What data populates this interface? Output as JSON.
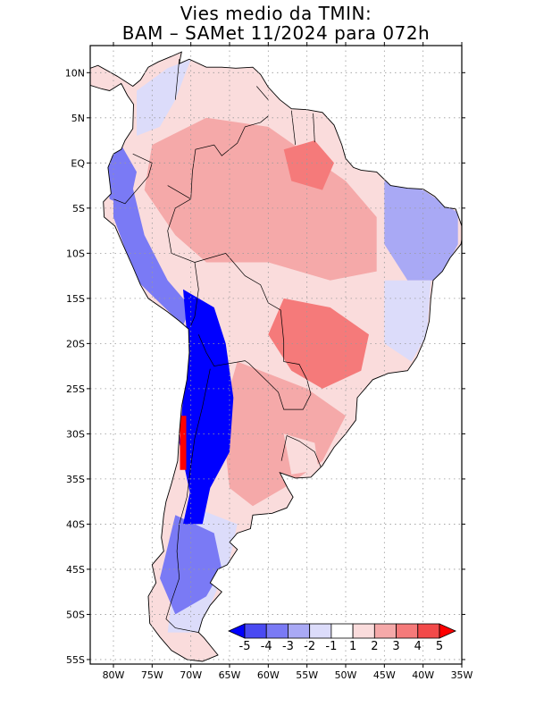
{
  "title": {
    "line1": "Vies medio da TMIN:",
    "line2": "BAM – SAMet 11/2024  para 072h"
  },
  "map": {
    "region": "South America",
    "lon_range": [
      -83,
      -35
    ],
    "lat_range": [
      -55.5,
      13
    ],
    "lat_labels": [
      "10N",
      "5N",
      "EQ",
      "5S",
      "10S",
      "15S",
      "20S",
      "25S",
      "30S",
      "35S",
      "40S",
      "45S",
      "50S",
      "55S"
    ],
    "lat_values": [
      10,
      5,
      0,
      -5,
      -10,
      -15,
      -20,
      -25,
      -30,
      -35,
      -40,
      -45,
      -50,
      -55
    ],
    "lon_labels": [
      "80W",
      "75W",
      "70W",
      "65W",
      "60W",
      "55W",
      "50W",
      "45W",
      "40W",
      "35W"
    ],
    "lon_values": [
      -80,
      -75,
      -70,
      -65,
      -60,
      -55,
      -50,
      -45,
      -40,
      -35
    ]
  },
  "colorbar": {
    "labels": [
      "-5",
      "-4",
      "-3",
      "-2",
      "-1",
      "1",
      "2",
      "3",
      "4",
      "5"
    ],
    "colors": [
      "#0000ff",
      "#4a4af2",
      "#7a7af5",
      "#a9a9f5",
      "#dcdcfa",
      "#ffffff",
      "#fadcdc",
      "#f5a9a9",
      "#f57a7a",
      "#f24a4a",
      "#ff0000"
    ]
  },
  "regions": {
    "amazon_warm": "#f5a9a9",
    "core_warm": "#f57a7a",
    "andes_cold": "#0000ff",
    "coast_cold": "#7a7af5",
    "ne_cool": "#a9a9f5",
    "light_warm": "#fadcdc",
    "light_cool": "#dcdcfa"
  }
}
